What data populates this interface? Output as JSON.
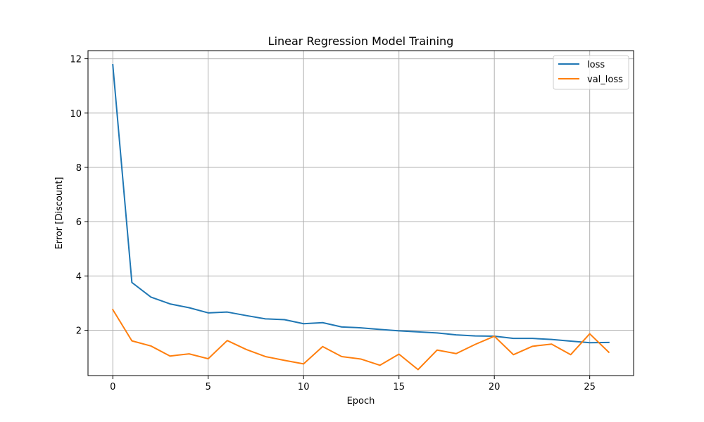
{
  "chart_data": {
    "type": "line",
    "title": "Linear Regression Model Training",
    "xlabel": "Epoch",
    "ylabel": "Error [Discount]",
    "xlim": [
      -1.3,
      27.3
    ],
    "ylim": [
      0.33,
      12.3
    ],
    "xticks": [
      0,
      5,
      10,
      15,
      20,
      25
    ],
    "yticks": [
      2,
      4,
      6,
      8,
      10,
      12
    ],
    "grid": true,
    "legend_position": "top-right",
    "x": [
      0,
      1,
      2,
      3,
      4,
      5,
      6,
      7,
      8,
      9,
      10,
      11,
      12,
      13,
      14,
      15,
      16,
      17,
      18,
      19,
      20,
      21,
      22,
      23,
      24,
      25,
      26
    ],
    "series": [
      {
        "name": "loss",
        "color": "#1f77b4",
        "values": [
          11.78,
          3.76,
          3.22,
          2.97,
          2.83,
          2.64,
          2.67,
          2.54,
          2.42,
          2.39,
          2.24,
          2.28,
          2.12,
          2.09,
          2.03,
          1.98,
          1.94,
          1.9,
          1.83,
          1.79,
          1.78,
          1.7,
          1.7,
          1.66,
          1.6,
          1.54,
          1.55
        ]
      },
      {
        "name": "val_loss",
        "color": "#ff7f0e",
        "values": [
          2.76,
          1.61,
          1.42,
          1.05,
          1.13,
          0.95,
          1.62,
          1.29,
          1.03,
          0.89,
          0.76,
          1.4,
          1.03,
          0.94,
          0.71,
          1.12,
          0.55,
          1.27,
          1.14,
          1.48,
          1.78,
          1.1,
          1.41,
          1.49,
          1.1,
          1.87,
          1.19
        ]
      }
    ]
  }
}
